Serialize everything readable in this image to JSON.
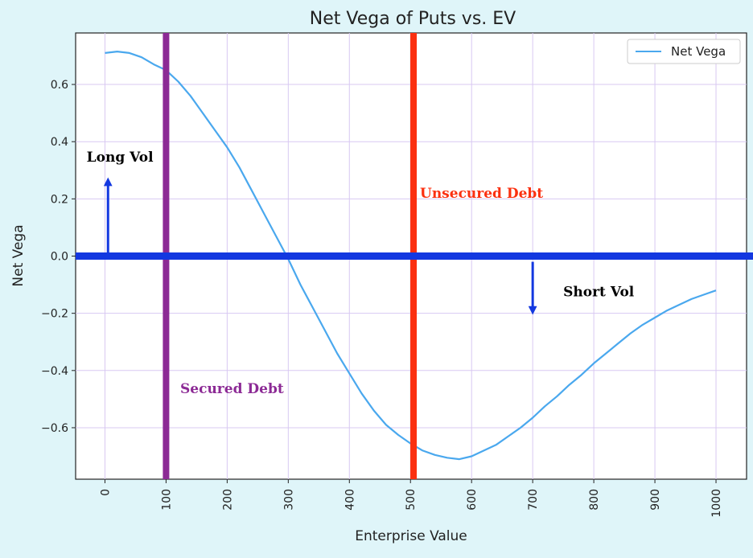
{
  "chart_data": {
    "type": "line",
    "title": "Net Vega of Puts vs. EV",
    "xlabel": "Enterprise Value",
    "ylabel": "Net Vega",
    "xlim": [
      -48,
      1050
    ],
    "ylim": [
      -0.78,
      0.78
    ],
    "x_ticks": [
      0,
      100,
      200,
      300,
      400,
      500,
      600,
      700,
      800,
      900,
      1000
    ],
    "x_tick_labels": [
      "0",
      "100",
      "200",
      "300",
      "400",
      "500",
      "600",
      "700",
      "800",
      "900",
      "1000"
    ],
    "y_ticks": [
      -0.6,
      -0.4,
      -0.2,
      0.0,
      0.2,
      0.4,
      0.6
    ],
    "y_tick_labels": [
      "−0.6",
      "−0.4",
      "−0.2",
      "0.0",
      "0.2",
      "0.4",
      "0.6"
    ],
    "grid": true,
    "legend": {
      "placement": "top-right"
    },
    "series": [
      {
        "name": "Net Vega",
        "color": "#4aa8ee",
        "x": [
          0,
          20,
          40,
          60,
          80,
          100,
          120,
          140,
          160,
          180,
          200,
          220,
          240,
          260,
          280,
          300,
          320,
          340,
          360,
          380,
          400,
          420,
          440,
          460,
          480,
          500,
          520,
          540,
          560,
          580,
          600,
          620,
          640,
          660,
          680,
          700,
          720,
          740,
          760,
          780,
          800,
          820,
          840,
          860,
          880,
          900,
          920,
          940,
          960,
          980,
          1000
        ],
        "y": [
          0.71,
          0.715,
          0.71,
          0.695,
          0.67,
          0.65,
          0.61,
          0.56,
          0.5,
          0.44,
          0.38,
          0.31,
          0.23,
          0.15,
          0.07,
          -0.01,
          -0.1,
          -0.18,
          -0.26,
          -0.34,
          -0.41,
          -0.48,
          -0.54,
          -0.59,
          -0.625,
          -0.655,
          -0.68,
          -0.695,
          -0.705,
          -0.71,
          -0.7,
          -0.68,
          -0.66,
          -0.63,
          -0.6,
          -0.565,
          -0.525,
          -0.49,
          -0.45,
          -0.415,
          -0.375,
          -0.34,
          -0.305,
          -0.27,
          -0.24,
          -0.215,
          -0.19,
          -0.17,
          -0.15,
          -0.135,
          -0.12
        ]
      }
    ],
    "vertical_lines": [
      {
        "x": 100,
        "color": "#8c2a95",
        "label": "Secured Debt"
      },
      {
        "x": 505,
        "color": "#fb3010",
        "label": "Unsecured Debt"
      }
    ],
    "horizontal_lines": [
      {
        "y": 0.0,
        "color": "#1338e0"
      }
    ],
    "annotations": [
      {
        "text": "Long Vol",
        "x": -30,
        "y": 0.33,
        "color": "#000000",
        "arrow": {
          "x": 5,
          "y_from": 0.01,
          "y_to": 0.26,
          "color": "#1338e0"
        }
      },
      {
        "text": "Short Vol",
        "x": 750,
        "y": -0.14,
        "color": "#000000",
        "arrow": {
          "x": 700,
          "y_from": -0.02,
          "y_to": -0.19,
          "color": "#1338e0"
        }
      }
    ]
  }
}
